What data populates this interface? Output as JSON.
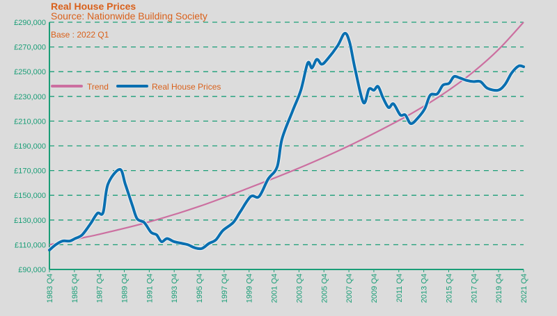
{
  "chart_data": {
    "type": "line",
    "title": "Real House Prices",
    "subtitle": "Source: Nationwide Building Society",
    "annotation": "Base : 2022 Q1",
    "xlabel": "",
    "ylabel": "",
    "ylim": [
      90000,
      290000
    ],
    "xlim": [
      1983.75,
      2021.75
    ],
    "y_ticks": [
      "£90,000",
      "£110,000",
      "£130,000",
      "£150,000",
      "£170,000",
      "£190,000",
      "£210,000",
      "£230,000",
      "£250,000",
      "£270,000",
      "£290,000"
    ],
    "x_ticks": [
      "1983 Q4",
      "1985 Q4",
      "1987 Q4",
      "1989 Q4",
      "1991 Q4",
      "1993 Q4",
      "1995 Q4",
      "1997 Q4",
      "1999 Q4",
      "2001 Q4",
      "2003 Q4",
      "2005 Q4",
      "2007 Q4",
      "2009 Q4",
      "2011 Q4",
      "2013 Q4",
      "2015 Q4",
      "2017 Q4",
      "2019 Q4",
      "2021 Q4"
    ],
    "grid": "horizontal dashed",
    "legend_position": "top-left",
    "colors": {
      "axis": "#1a9e77",
      "text": "#d9601a",
      "trend": "#cc6fa0",
      "prices": "#0a6fb0",
      "background": "#dcdcdc"
    },
    "series": [
      {
        "name": "Trend",
        "color": "#cc6fa0",
        "points": [
          [
            1983.75,
            110000
          ],
          [
            1987.75,
            118500
          ],
          [
            1991.75,
            128500
          ],
          [
            1995.75,
            141000
          ],
          [
            1999.75,
            156000
          ],
          [
            2003.75,
            172000
          ],
          [
            2007.75,
            190000
          ],
          [
            2011.75,
            210500
          ],
          [
            2013.75,
            222000
          ],
          [
            2015.75,
            235000
          ],
          [
            2017.75,
            250000
          ],
          [
            2019.75,
            268000
          ],
          [
            2021.75,
            290000
          ]
        ]
      },
      {
        "name": "Real House Prices",
        "color": "#0a6fb0",
        "points": [
          [
            1983.75,
            105700
          ],
          [
            1984.25,
            110000
          ],
          [
            1984.8,
            113000
          ],
          [
            1985.37,
            113000
          ],
          [
            1985.8,
            115000
          ],
          [
            1986.37,
            118000
          ],
          [
            1987.04,
            127000
          ],
          [
            1987.6,
            135500
          ],
          [
            1988.05,
            136000
          ],
          [
            1988.44,
            159000
          ],
          [
            1989.39,
            171000
          ],
          [
            1989.83,
            159000
          ],
          [
            1990.39,
            142000
          ],
          [
            1990.78,
            131000
          ],
          [
            1991.34,
            128000
          ],
          [
            1991.9,
            120000
          ],
          [
            1992.34,
            118000
          ],
          [
            1992.73,
            112500
          ],
          [
            1993.18,
            115000
          ],
          [
            1993.74,
            112500
          ],
          [
            1994.41,
            111000
          ],
          [
            1994.85,
            110000
          ],
          [
            1995.41,
            107500
          ],
          [
            1995.97,
            107000
          ],
          [
            1996.53,
            111000
          ],
          [
            1997.09,
            114000
          ],
          [
            1997.65,
            121500
          ],
          [
            1998.48,
            128000
          ],
          [
            1999.04,
            136600
          ],
          [
            1999.88,
            149000
          ],
          [
            2000.55,
            149000
          ],
          [
            2001.27,
            163000
          ],
          [
            2002.0,
            173000
          ],
          [
            2002.39,
            195600
          ],
          [
            2003.23,
            218000
          ],
          [
            2003.9,
            235000
          ],
          [
            2004.45,
            257000
          ],
          [
            2004.79,
            253000
          ],
          [
            2005.18,
            260000
          ],
          [
            2005.57,
            256000
          ],
          [
            2006.02,
            260000
          ],
          [
            2006.85,
            271000
          ],
          [
            2007.41,
            281000
          ],
          [
            2007.8,
            274000
          ],
          [
            2008.25,
            252000
          ],
          [
            2008.92,
            225000
          ],
          [
            2009.36,
            236000
          ],
          [
            2009.75,
            235000
          ],
          [
            2010.09,
            238000
          ],
          [
            2010.48,
            229000
          ],
          [
            2010.93,
            221000
          ],
          [
            2011.32,
            224000
          ],
          [
            2011.87,
            215000
          ],
          [
            2012.27,
            215000
          ],
          [
            2012.71,
            208000
          ],
          [
            2013.27,
            212500
          ],
          [
            2013.83,
            220000
          ],
          [
            2014.27,
            231000
          ],
          [
            2014.83,
            232000
          ],
          [
            2015.28,
            239000
          ],
          [
            2015.78,
            240600
          ],
          [
            2016.17,
            246000
          ],
          [
            2016.62,
            245000
          ],
          [
            2017.17,
            243000
          ],
          [
            2017.73,
            242000
          ],
          [
            2018.29,
            242000
          ],
          [
            2018.85,
            236600
          ],
          [
            2019.69,
            235000
          ],
          [
            2020.25,
            239500
          ],
          [
            2020.8,
            249000
          ],
          [
            2021.36,
            254600
          ],
          [
            2021.75,
            254000
          ]
        ]
      }
    ]
  }
}
